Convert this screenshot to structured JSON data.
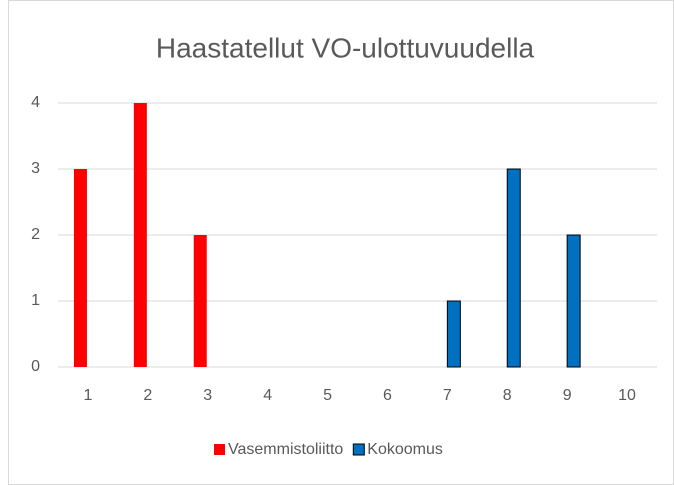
{
  "chart_data": {
    "type": "bar",
    "title": "Haastatellut VO-ulottuvuudella",
    "categories": [
      "1",
      "2",
      "3",
      "4",
      "5",
      "6",
      "7",
      "8",
      "9",
      "10"
    ],
    "series": [
      {
        "name": "Vasemmistoliitto",
        "color": "#ff0000",
        "values": [
          3,
          4,
          2,
          0,
          0,
          0,
          0,
          0,
          0,
          0
        ]
      },
      {
        "name": "Kokoomus",
        "color": "#0070c0",
        "values": [
          0,
          0,
          0,
          0,
          0,
          0,
          1,
          3,
          2,
          0
        ]
      }
    ],
    "ylim": [
      0,
      4
    ],
    "yticks": [
      0,
      1,
      2,
      3,
      4
    ],
    "grid": true,
    "legend": "bottom"
  }
}
